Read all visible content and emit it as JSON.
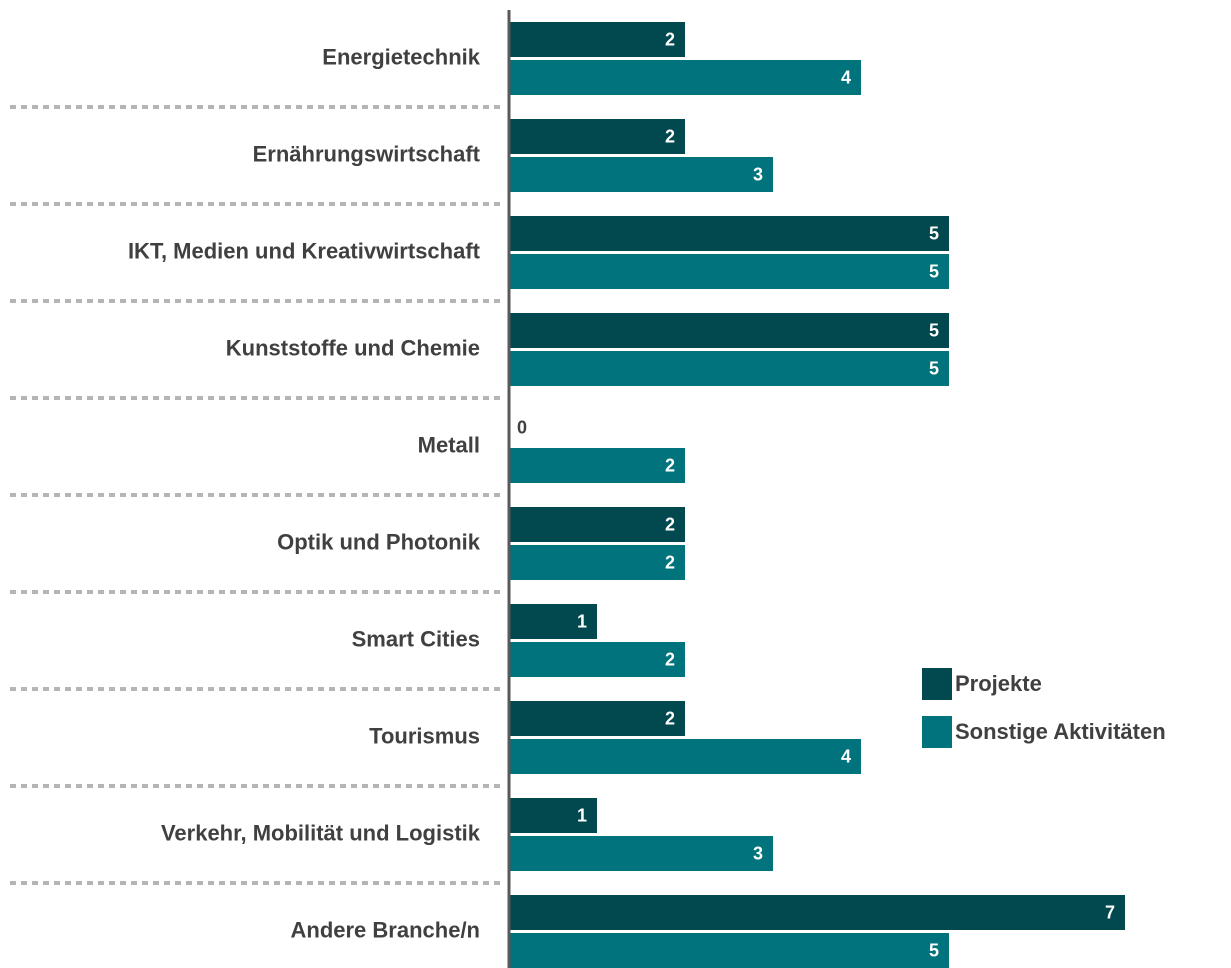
{
  "chart_data": {
    "type": "bar",
    "orientation": "horizontal",
    "categories": [
      "Energietechnik",
      "Ernährungswirtschaft",
      "IKT, Medien und Kreativwirtschaft",
      "Kunststoffe und Chemie",
      "Metall",
      "Optik und Photonik",
      "Smart Cities",
      "Tourismus",
      "Verkehr, Mobilität und Logistik",
      "Andere Branche/n"
    ],
    "series": [
      {
        "name": "Projekte",
        "color": "#02484f",
        "values": [
          2,
          2,
          5,
          5,
          0,
          2,
          1,
          2,
          1,
          7
        ]
      },
      {
        "name": "Sonstige Aktivitäten",
        "color": "#00737c",
        "values": [
          4,
          3,
          5,
          5,
          2,
          2,
          2,
          4,
          3,
          5
        ]
      }
    ],
    "xlim": [
      0,
      7
    ]
  }
}
